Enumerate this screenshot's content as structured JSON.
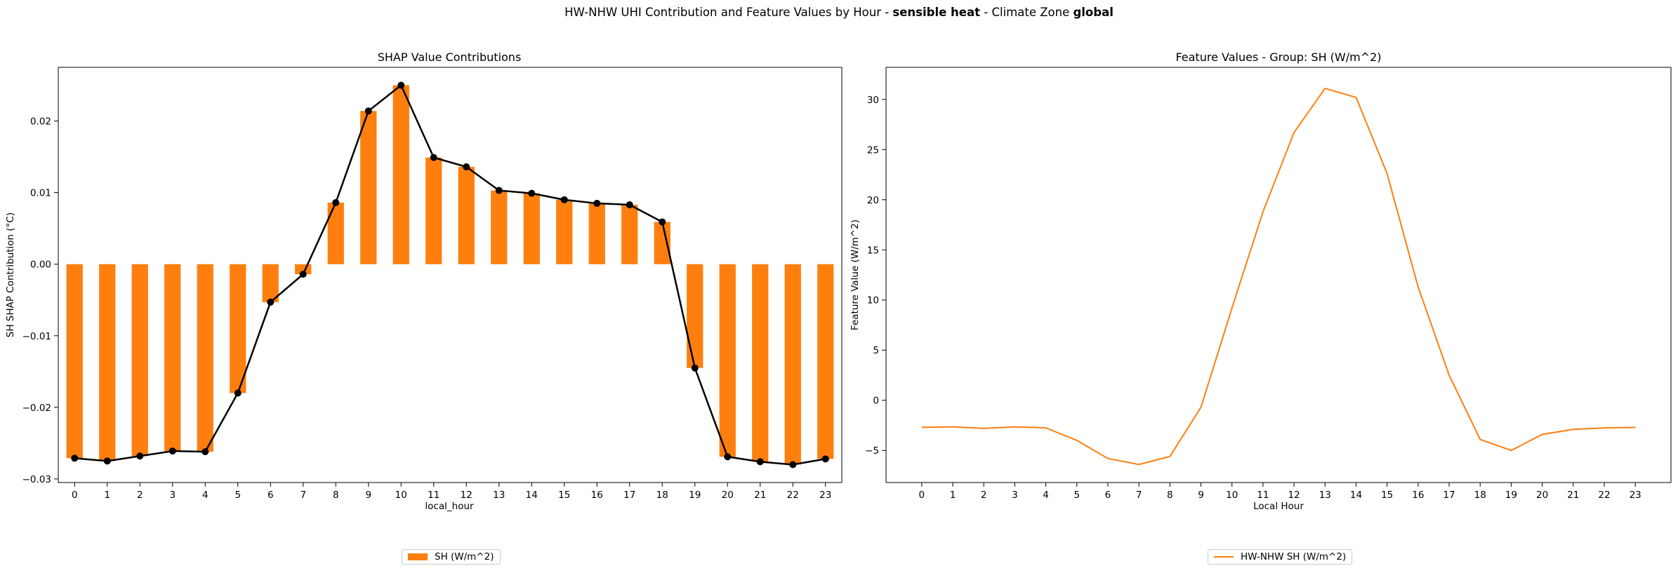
{
  "suptitle": {
    "prefix": "HW-NHW UHI Contribution and Feature Values by Hour - ",
    "feature": "sensible heat",
    "middle": " - Climate Zone ",
    "zone": "global"
  },
  "colors": {
    "bar": "#ff7f0e",
    "line": "#000000",
    "feature_line": "#ff7f0e"
  },
  "chart_data": [
    {
      "type": "bar",
      "title": "SHAP Value Contributions",
      "xlabel": "local_hour",
      "ylabel": "SH SHAP Contribution (°C)",
      "categories": [
        "0",
        "1",
        "2",
        "3",
        "4",
        "5",
        "6",
        "7",
        "8",
        "9",
        "10",
        "11",
        "12",
        "13",
        "14",
        "15",
        "16",
        "17",
        "18",
        "19",
        "20",
        "21",
        "22",
        "23"
      ],
      "series": [
        {
          "name": "SH (W/m^2)",
          "values": [
            -0.0271,
            -0.0275,
            -0.0268,
            -0.0261,
            -0.0262,
            -0.018,
            -0.0053,
            -0.0014,
            0.0086,
            0.0214,
            0.025,
            0.0149,
            0.0136,
            0.0103,
            0.0099,
            0.009,
            0.0085,
            0.0083,
            0.0059,
            -0.0145,
            -0.0269,
            -0.0276,
            -0.028,
            -0.0272
          ]
        }
      ],
      "overlay_line_values": [
        -0.0271,
        -0.0275,
        -0.0268,
        -0.0261,
        -0.0262,
        -0.018,
        -0.0053,
        -0.0014,
        0.0086,
        0.0214,
        0.025,
        0.0149,
        0.0136,
        0.0103,
        0.0099,
        0.009,
        0.0085,
        0.0083,
        0.0059,
        -0.0145,
        -0.0269,
        -0.0276,
        -0.028,
        -0.0272
      ],
      "ylim": [
        -0.0305,
        0.0275
      ],
      "yticks": [
        -0.03,
        -0.02,
        -0.01,
        0.0,
        0.01,
        0.02
      ],
      "ytick_labels": [
        "−0.03",
        "−0.02",
        "−0.01",
        "0.00",
        "0.01",
        "0.02"
      ],
      "legend": "bottom-center",
      "grid": false
    },
    {
      "type": "line",
      "title": "Feature Values - Group: SH (W/m^2)",
      "xlabel": "Local Hour",
      "ylabel": "Feature Value (W/m^2)",
      "x": [
        0,
        1,
        2,
        3,
        4,
        5,
        6,
        7,
        8,
        9,
        10,
        11,
        12,
        13,
        14,
        15,
        16,
        17,
        18,
        19,
        20,
        21,
        22,
        23
      ],
      "series": [
        {
          "name": "HW-NHW SH (W/m^2)",
          "values": [
            -2.7,
            -2.65,
            -2.8,
            -2.65,
            -2.75,
            -4.0,
            -5.8,
            -6.4,
            -5.6,
            -0.7,
            9.2,
            18.8,
            26.7,
            31.1,
            30.2,
            22.6,
            11.3,
            2.5,
            -3.9,
            -5.0,
            -3.4,
            -2.9,
            -2.75,
            -2.7
          ]
        }
      ],
      "xlim": [
        -1.15,
        24.15
      ],
      "ylim": [
        -8.2,
        33.2
      ],
      "yticks": [
        -5,
        0,
        5,
        10,
        15,
        20,
        25,
        30
      ],
      "ytick_labels": [
        "−5",
        "0",
        "5",
        "10",
        "15",
        "20",
        "25",
        "30"
      ],
      "legend": "bottom-center",
      "grid": false
    }
  ]
}
